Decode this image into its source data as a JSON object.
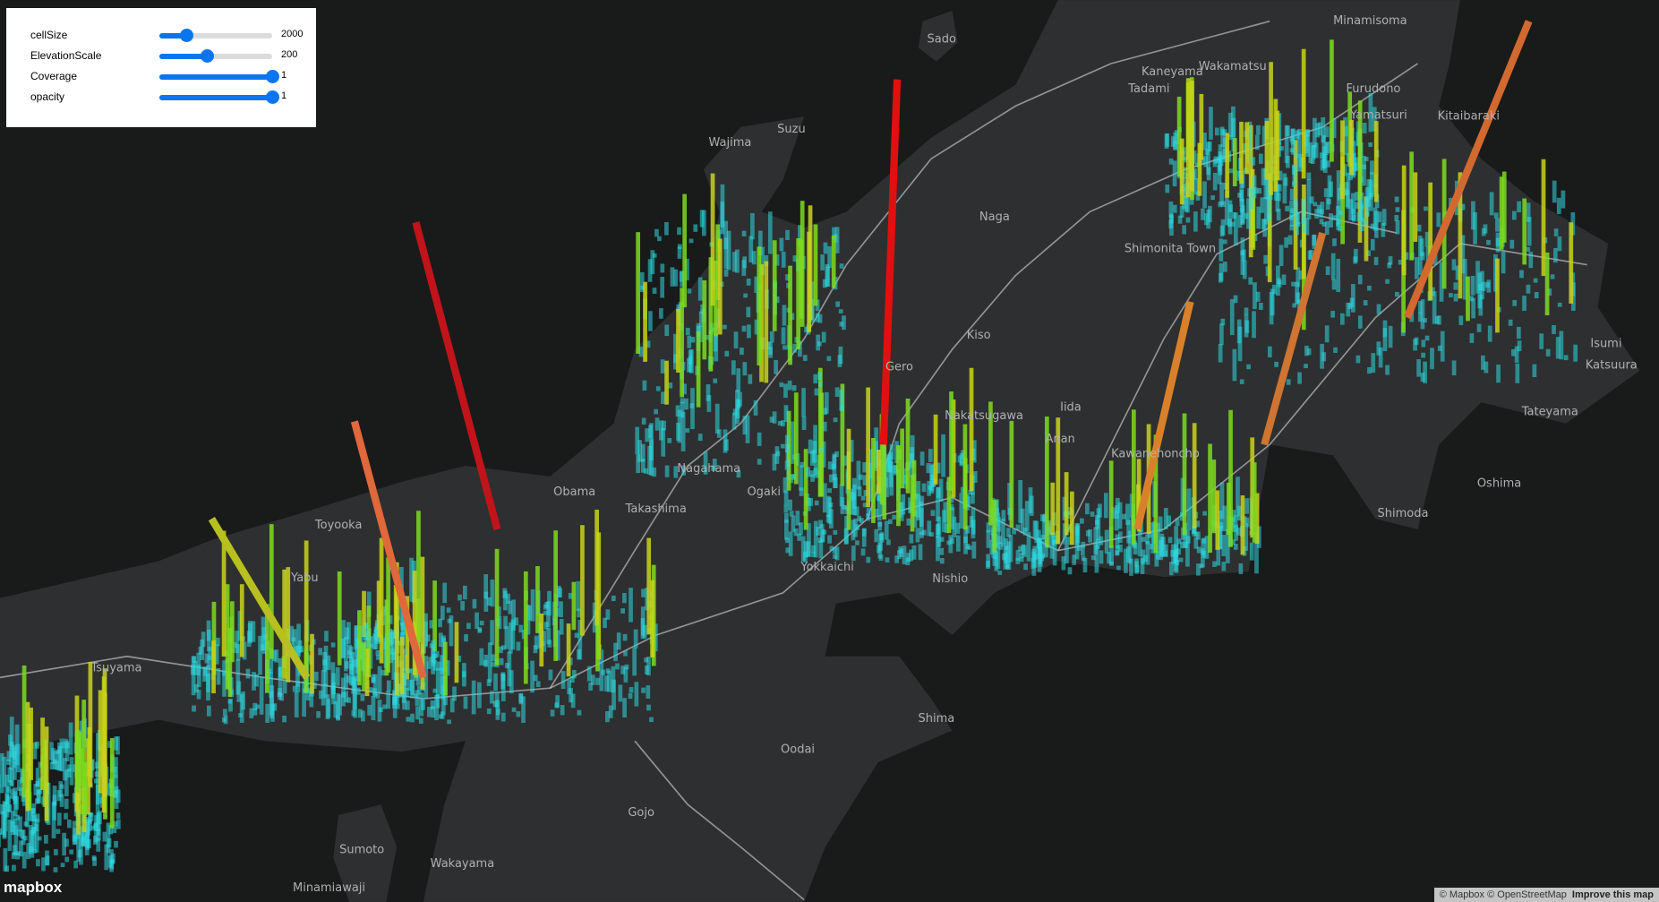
{
  "controls": [
    {
      "label": "cellSize",
      "value": "2000"
    },
    {
      "label": "ElevationScale",
      "value": "200"
    },
    {
      "label": "Coverage",
      "value": "1"
    },
    {
      "label": "opacity",
      "value": "1"
    }
  ],
  "map_labels": [
    "Sado",
    "Wajima",
    "Suzu",
    "Naga",
    "Wakamatsu",
    "Kaneyama",
    "Tadami",
    "Furudono",
    "Yamatsuri",
    "Kitaibaraki",
    "Minamisoma",
    "Shimonita Town",
    "Kiso",
    "Gero",
    "Nakatsugawa",
    "Iida",
    "Anan",
    "Kawanehoncho",
    "Nishio",
    "Yokkaichi",
    "Ogaki",
    "Nagahama",
    "Takashima",
    "Obama",
    "Toyooka",
    "Yabu",
    "Tsuyama",
    "Shima",
    "Oodai",
    "Gojo",
    "Wakayama",
    "Sumoto",
    "Minamiawaji",
    "Shimoda",
    "Tateyama",
    "Oshima",
    "Isumi",
    "Katsuura"
  ],
  "attribution": {
    "copyright": "© Mapbox © OpenStreetMap",
    "improve": "Improve this map",
    "logo": "mapbox"
  }
}
